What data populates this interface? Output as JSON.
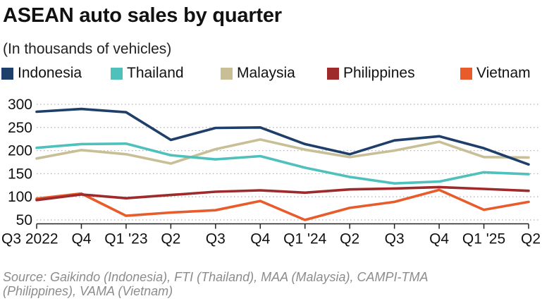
{
  "chart_data": {
    "type": "line",
    "title": "ASEAN auto sales by quarter",
    "subtitle": "(In thousands of vehicles)",
    "xlabel": "",
    "ylabel": "",
    "ylim": [
      40,
      310
    ],
    "yticks": [
      300,
      250,
      200,
      150,
      100,
      50
    ],
    "grid": "horizontal dotted",
    "legend_position": "top",
    "categories": [
      "Q3 2022",
      "Q4",
      "Q1 '23",
      "Q2",
      "Q3",
      "Q4",
      "Q1 '24",
      "Q2",
      "Q3",
      "Q4",
      "Q1 '25",
      "Q2"
    ],
    "xtick_labels": [
      "Q3 2022",
      "Q4",
      "Q1 '23",
      "Q2",
      "Q3",
      "Q4",
      "Q1 '24",
      "Q2",
      "Q3",
      "Q4",
      "Q1 '25",
      "Q2"
    ],
    "series": [
      {
        "name": "Indonesia",
        "color": "#1f3f6b",
        "values": [
          284,
          290,
          283,
          223,
          249,
          250,
          214,
          192,
          222,
          231,
          205,
          170
        ]
      },
      {
        "name": "Thailand",
        "color": "#4fc1bd",
        "values": [
          206,
          214,
          215,
          190,
          181,
          188,
          163,
          143,
          129,
          133,
          153,
          149
        ]
      },
      {
        "name": "Malaysia",
        "color": "#c8bf96",
        "values": [
          183,
          201,
          192,
          172,
          203,
          224,
          202,
          186,
          200,
          219,
          186,
          185
        ]
      },
      {
        "name": "Philippines",
        "color": "#9e2a2b",
        "values": [
          93,
          105,
          97,
          104,
          111,
          114,
          109,
          116,
          118,
          121,
          117,
          113
        ]
      },
      {
        "name": "Vietnam",
        "color": "#e85c2c",
        "values": [
          96,
          107,
          59,
          66,
          71,
          91,
          50,
          76,
          89,
          115,
          72,
          89
        ]
      }
    ]
  },
  "source": "Source: Gaikindo (Indonesia), FTI (Thailand), MAA (Malaysia), CAMPI-TMA\n(Philippines), VAMA (Vietnam)"
}
